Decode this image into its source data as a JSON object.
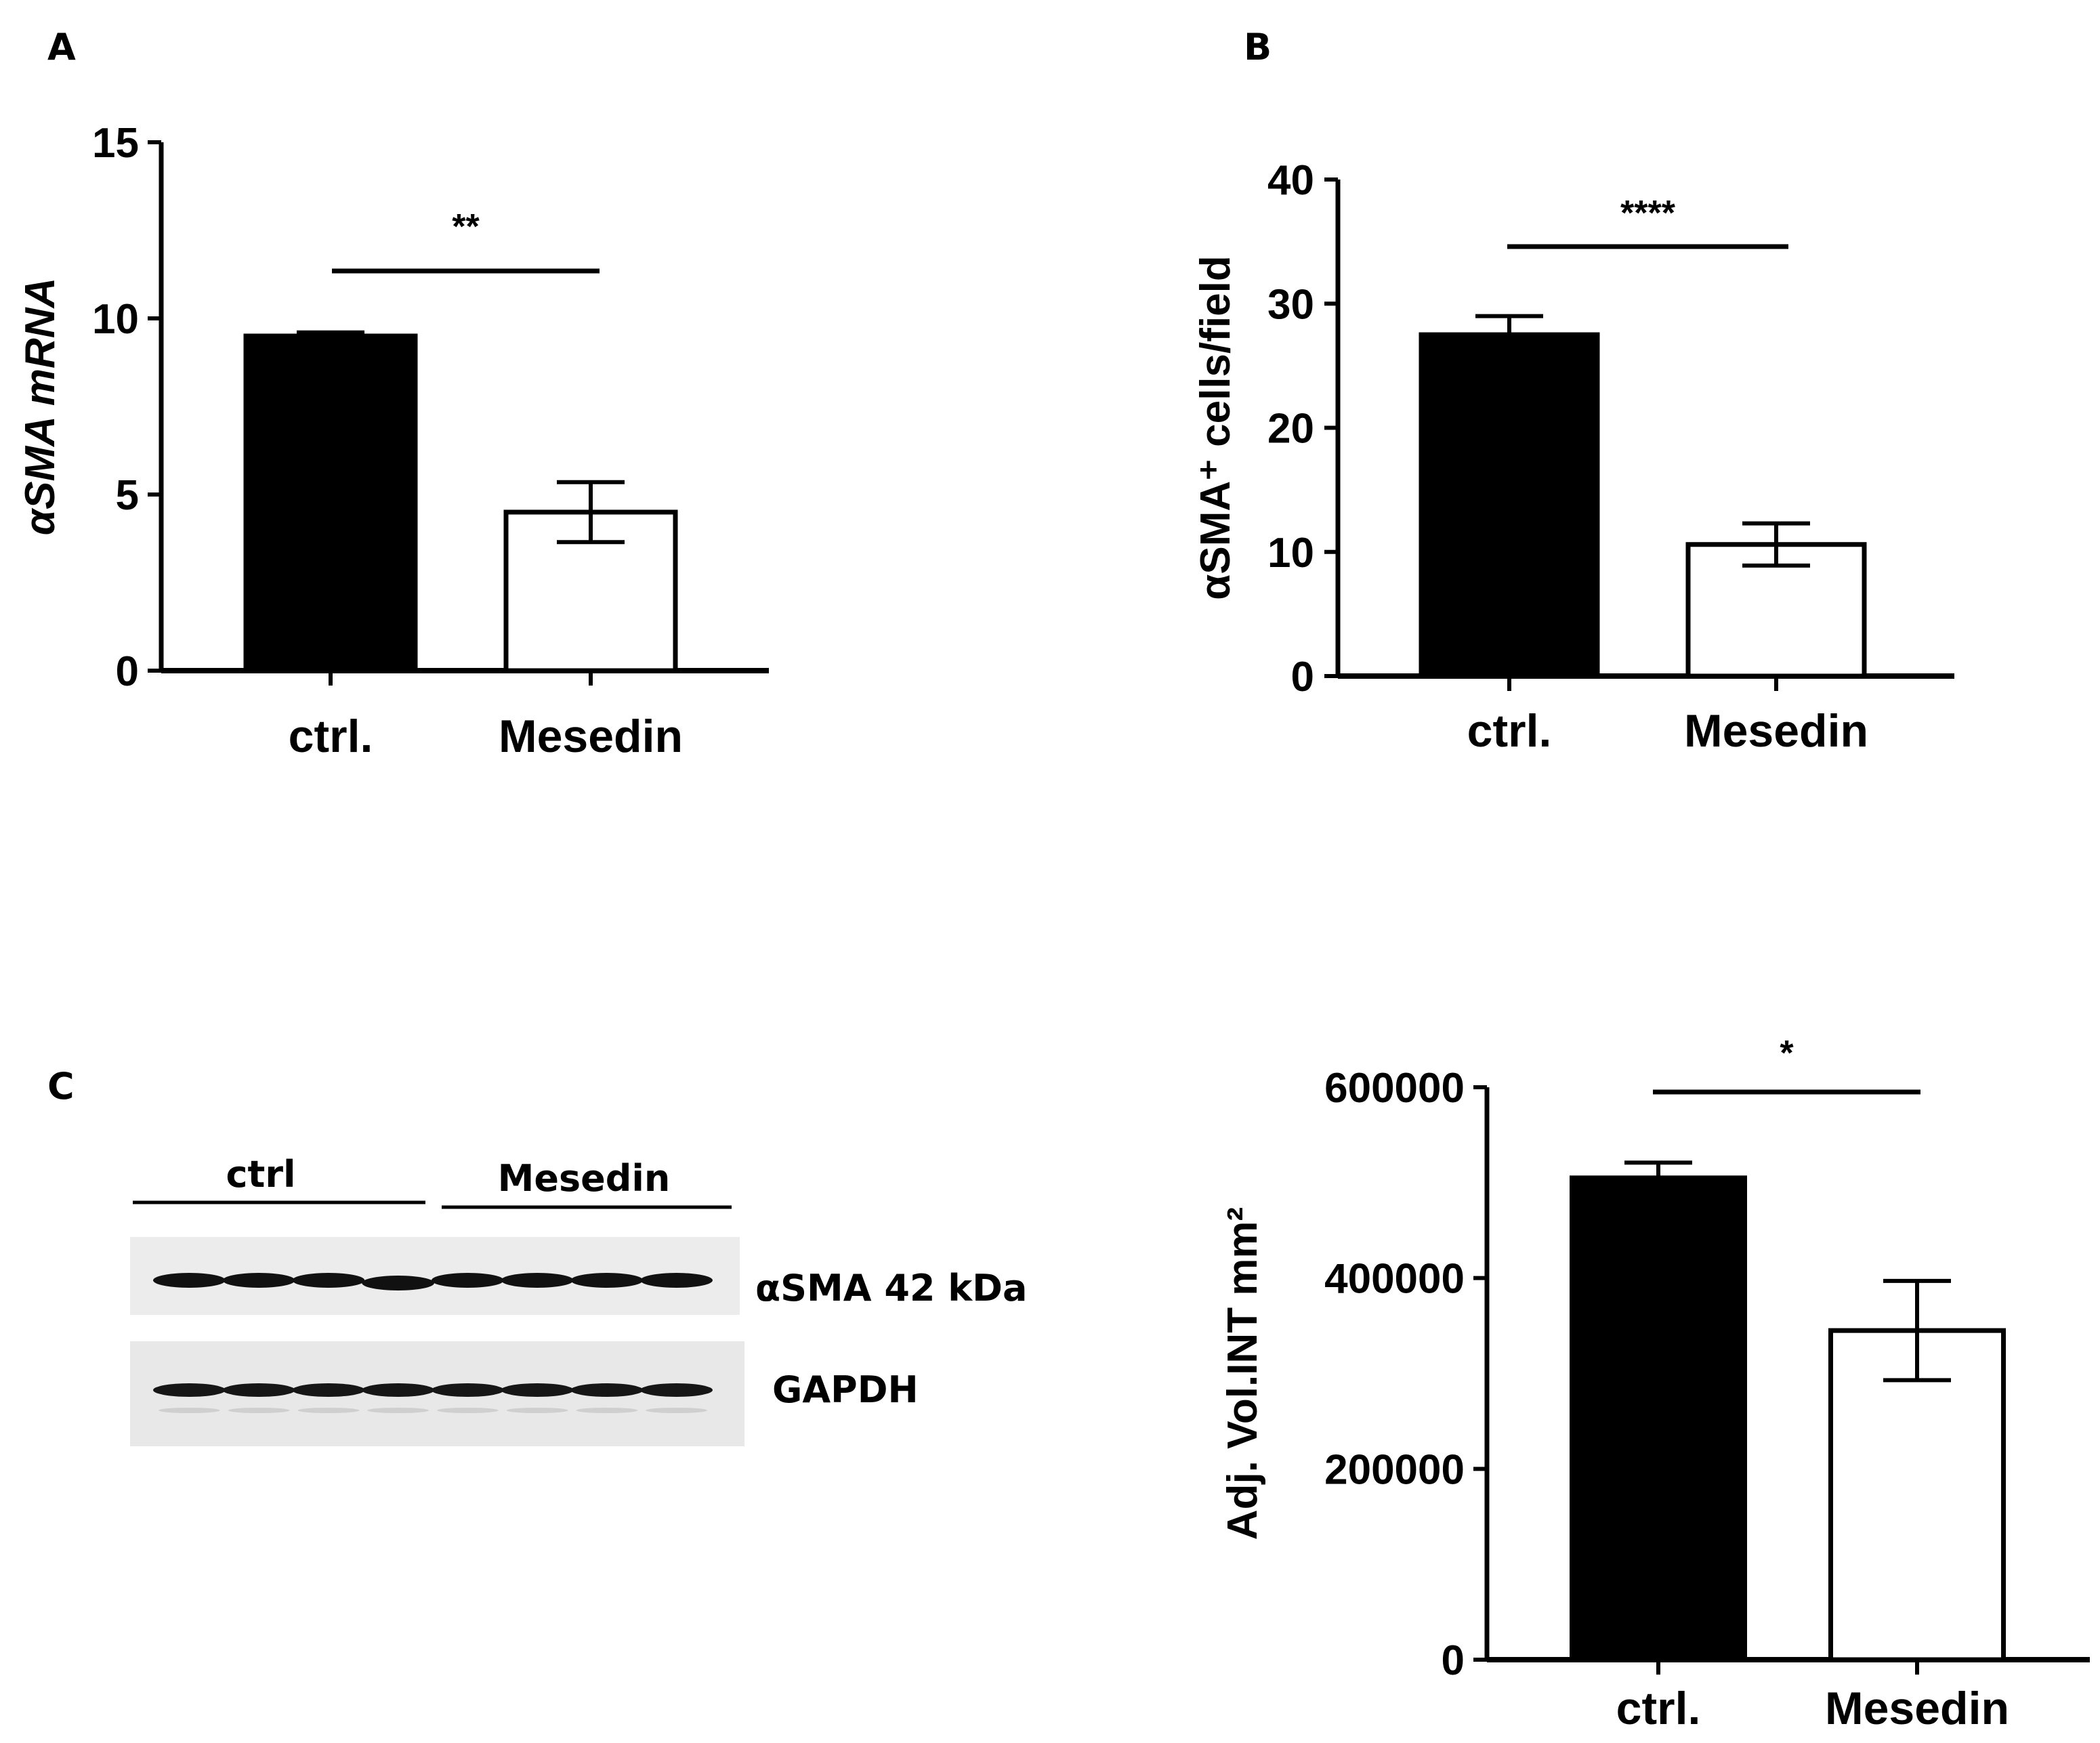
{
  "panels": {
    "a_label": "A",
    "b_label": "B",
    "c_label": "C"
  },
  "blot": {
    "group_left": "ctrl",
    "group_right": "Mesedin",
    "band_top_label": "αSMA 42 kDa",
    "band_bottom_label": "GAPDH",
    "lanes_per_group": 4
  },
  "colors": {
    "ctrl_fill": "#000000",
    "mesedin_fill": "#ffffff",
    "axis": "#000000"
  },
  "chart_data": [
    {
      "type": "bar",
      "panel": "A",
      "categories": [
        "ctrl.",
        "Mesedin"
      ],
      "values": [
        9.5,
        4.5
      ],
      "errors": [
        0.1,
        0.85
      ],
      "ylabel": "αSMA mRNA",
      "ylim": [
        0,
        15
      ],
      "yticks": [
        "0",
        "5",
        "10",
        "15"
      ],
      "significance": "**",
      "grid": false
    },
    {
      "type": "bar",
      "panel": "B",
      "categories": [
        "ctrl.",
        "Mesedin"
      ],
      "values": [
        27.5,
        10.6
      ],
      "errors": [
        1.5,
        1.7
      ],
      "ylabel": "αSMA⁺ cells/field",
      "ylim": [
        0,
        40
      ],
      "yticks": [
        "0",
        "10",
        "20",
        "30",
        "40"
      ],
      "significance": "****",
      "grid": false
    },
    {
      "type": "bar",
      "panel": "C",
      "categories": [
        "ctrl.",
        "Mesedin"
      ],
      "values": [
        505000,
        345000
      ],
      "errors": [
        16000,
        52000
      ],
      "ylabel": "Adj. Vol.INT mm²",
      "ylim": [
        0,
        600000
      ],
      "yticks": [
        "0",
        "200000",
        "400000",
        "600000"
      ],
      "significance": "*",
      "grid": false
    }
  ]
}
